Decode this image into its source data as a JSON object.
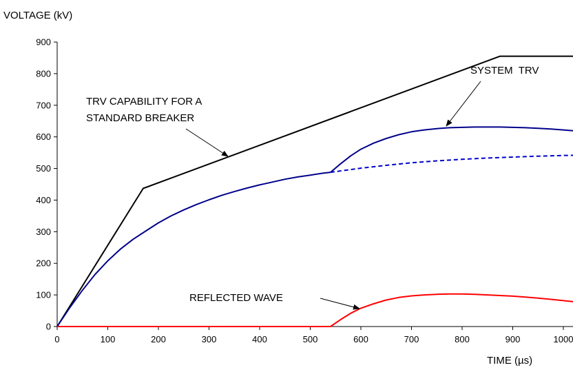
{
  "chart_data": {
    "type": "line",
    "title": "",
    "ylabel": "VOLTAGE (kV)",
    "xlabel": "TIME (µs)",
    "xlim": [
      0,
      1030
    ],
    "ylim": [
      0,
      900
    ],
    "xticks": [
      0,
      100,
      200,
      300,
      400,
      500,
      600,
      700,
      800,
      900,
      1000
    ],
    "yticks": [
      0,
      100,
      200,
      300,
      400,
      500,
      600,
      700,
      800,
      900
    ],
    "grid": false,
    "series": [
      {
        "color": "#000000",
        "style": "solid",
        "points": [
          [
            0,
            0
          ],
          [
            170,
            437
          ],
          [
            875,
            855
          ],
          [
            1030,
            855
          ]
        ]
      },
      {
        "color": "#00008b",
        "style": "solid",
        "points": [
          [
            0,
            0
          ],
          [
            25,
            60
          ],
          [
            50,
            115
          ],
          [
            75,
            165
          ],
          [
            100,
            208
          ],
          [
            125,
            245
          ],
          [
            150,
            276
          ],
          [
            175,
            302
          ],
          [
            200,
            328
          ],
          [
            225,
            350
          ],
          [
            250,
            369
          ],
          [
            275,
            386
          ],
          [
            300,
            401
          ],
          [
            325,
            415
          ],
          [
            350,
            427
          ],
          [
            375,
            438
          ],
          [
            400,
            448
          ],
          [
            425,
            457
          ],
          [
            450,
            466
          ],
          [
            475,
            473
          ],
          [
            500,
            479
          ],
          [
            525,
            485
          ],
          [
            540,
            488
          ]
        ]
      },
      {
        "color": "#0000cd",
        "style": "dashed",
        "points": [
          [
            540,
            488
          ],
          [
            600,
            501
          ],
          [
            650,
            510
          ],
          [
            700,
            518
          ],
          [
            750,
            524
          ],
          [
            800,
            529
          ],
          [
            850,
            533
          ],
          [
            900,
            536
          ],
          [
            950,
            539
          ],
          [
            1000,
            541
          ],
          [
            1030,
            542
          ]
        ]
      },
      {
        "color": "#00008b",
        "style": "solid",
        "points": [
          [
            540,
            488
          ],
          [
            560,
            515
          ],
          [
            580,
            540
          ],
          [
            600,
            561
          ],
          [
            625,
            580
          ],
          [
            650,
            595
          ],
          [
            675,
            607
          ],
          [
            700,
            616
          ],
          [
            725,
            622
          ],
          [
            750,
            626
          ],
          [
            775,
            629
          ],
          [
            800,
            630
          ],
          [
            825,
            631
          ],
          [
            850,
            631
          ],
          [
            875,
            631
          ],
          [
            900,
            630
          ],
          [
            925,
            629
          ],
          [
            950,
            627
          ],
          [
            975,
            625
          ],
          [
            1000,
            622
          ],
          [
            1030,
            618
          ]
        ]
      },
      {
        "color": "#ff0000",
        "style": "solid",
        "points": [
          [
            0,
            0
          ],
          [
            540,
            0
          ],
          [
            560,
            22
          ],
          [
            580,
            42
          ],
          [
            600,
            58
          ],
          [
            625,
            72
          ],
          [
            650,
            84
          ],
          [
            675,
            92
          ],
          [
            700,
            97
          ],
          [
            725,
            100
          ],
          [
            750,
            102
          ],
          [
            775,
            103
          ],
          [
            800,
            103
          ],
          [
            825,
            102
          ],
          [
            850,
            100
          ],
          [
            875,
            98
          ],
          [
            900,
            96
          ],
          [
            925,
            93
          ],
          [
            950,
            90
          ],
          [
            975,
            86
          ],
          [
            1000,
            82
          ],
          [
            1030,
            77
          ]
        ]
      }
    ],
    "annotations": [
      {
        "lines": [
          "TRV CAPABILITY FOR A",
          "STANDARD BREAKER"
        ],
        "target": [
          340,
          538
        ]
      },
      {
        "lines": [
          "SYSTEM  TRV"
        ],
        "target": [
          780,
          632
        ]
      },
      {
        "lines": [
          "REFLECTED WAVE"
        ],
        "target": [
          600,
          58
        ]
      }
    ]
  }
}
